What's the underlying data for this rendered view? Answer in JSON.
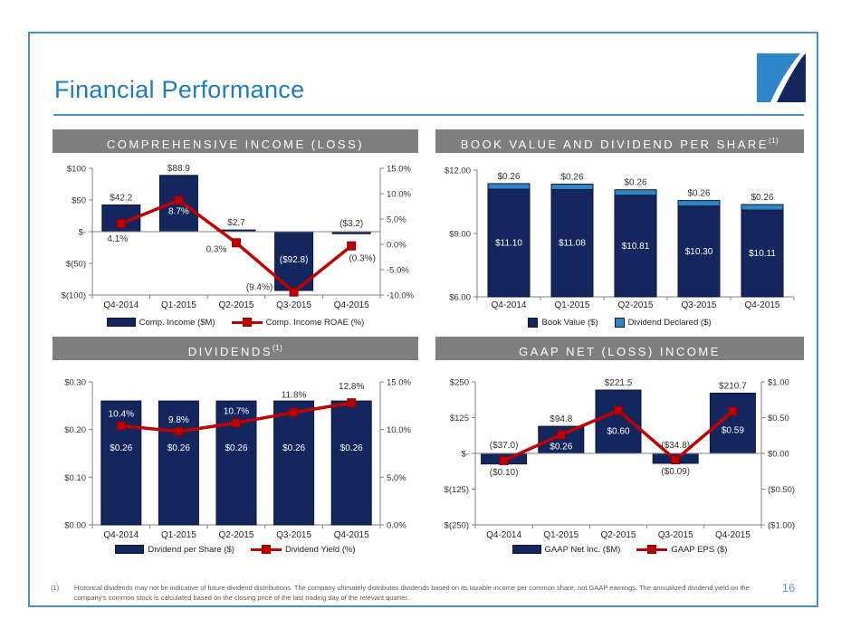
{
  "slide": {
    "title": "Financial Performance",
    "page_number": "16",
    "footnote": {
      "marker": "(1)",
      "text": "Historical dividends may not be indicative of future dividend distributions.  The company ultimately distributes dividends based on its taxable income per common share, not GAAP earnings. The annualized dividend yield on the company's common stock is calculated based on the closing price of the last trading day of the relevant quarter."
    },
    "colors": {
      "accent_blue": "#1E7BC0",
      "border_blue": "#4A90C8",
      "navy": "#13275E",
      "light_blue": "#2E86C8",
      "red": "#C00000",
      "red_dark": "#8B0000",
      "bar_outline": "#0A1634",
      "header_gray": "#7F7F7F",
      "axis_gray": "#808080",
      "text_dark": "#333333"
    }
  },
  "chart_data": [
    {
      "type": "bar",
      "title": "COMPREHENSIVE INCOME (LOSS)",
      "title_sup": "",
      "categories": [
        "Q4-2014",
        "Q1-2015",
        "Q2-2015",
        "Q3-2015",
        "Q4-2015"
      ],
      "left_axis": {
        "range": [
          -100,
          100
        ],
        "ticks": [
          {
            "v": 100,
            "t": "$100"
          },
          {
            "v": 50,
            "t": "$50"
          },
          {
            "v": 0,
            "t": "$-"
          },
          {
            "v": -50,
            "t": "$(50)"
          },
          {
            "v": -100,
            "t": "$(100)"
          }
        ]
      },
      "right_axis": {
        "range": [
          -10,
          15
        ],
        "ticks": [
          {
            "v": 15,
            "t": "15.0%"
          },
          {
            "v": 10,
            "t": "10.0%"
          },
          {
            "v": 5,
            "t": "5.0%"
          },
          {
            "v": 0,
            "t": "0.0%"
          },
          {
            "v": -5,
            "t": "-5.0%"
          },
          {
            "v": -10,
            "t": "-10.0%"
          }
        ]
      },
      "series": [
        {
          "name": "Comp. Income ($M)",
          "kind": "bar",
          "values": [
            42.2,
            88.9,
            2.7,
            -92.8,
            -3.2
          ],
          "labels": [
            "$42.2",
            "$88.9",
            "$2.7",
            "($92.8)",
            "($3.2)"
          ],
          "label_pos": [
            "above",
            "above",
            "above",
            "inside",
            "above-axis"
          ],
          "label_frac": 0.48
        },
        {
          "name": "Comp. Income ROAE (%)",
          "kind": "line",
          "values": [
            4.1,
            8.7,
            0.3,
            -9.4,
            -0.3
          ],
          "labels": [
            "4.1%",
            "8.7%",
            "0.3%",
            "(9.4%)",
            "(0.3%)"
          ],
          "label_dx": [
            -4,
            0,
            -22,
            -38,
            12
          ],
          "label_dy": [
            20,
            15,
            10,
            -2,
            17
          ],
          "label_white": [
            false,
            true,
            false,
            false,
            false
          ]
        }
      ]
    },
    {
      "type": "bar",
      "stacked": true,
      "title": "BOOK VALUE AND DIVIDEND PER SHARE",
      "title_sup": "(1)",
      "categories": [
        "Q4-2014",
        "Q1-2015",
        "Q2-2015",
        "Q3-2015",
        "Q4-2015"
      ],
      "left_axis": {
        "range": [
          6,
          12
        ],
        "ticks": [
          {
            "v": 12,
            "t": "$12.00"
          },
          {
            "v": 9,
            "t": "$9.00"
          },
          {
            "v": 6,
            "t": "$6.00"
          }
        ]
      },
      "series": [
        {
          "name": "Book Value ($)",
          "kind": "bar",
          "values": [
            11.1,
            11.08,
            10.81,
            10.3,
            10.11
          ],
          "labels": [
            "$11.10",
            "$11.08",
            "$10.81",
            "$10.30",
            "$10.11"
          ],
          "label_pos": [
            "inside",
            "inside",
            "inside",
            "inside",
            "inside"
          ],
          "label_frac": 0.5
        },
        {
          "name": "Dividend Declared ($)",
          "kind": "bar",
          "values": [
            0.26,
            0.26,
            0.26,
            0.26,
            0.26
          ],
          "labels": [
            "$0.26",
            "$0.26",
            "$0.26",
            "$0.26",
            "$0.26"
          ],
          "label_pos": [
            "above",
            "above",
            "above",
            "above",
            "above"
          ]
        }
      ]
    },
    {
      "type": "bar",
      "title": "DIVIDENDS",
      "title_sup": "(1)",
      "categories": [
        "Q4-2014",
        "Q1-2015",
        "Q2-2015",
        "Q3-2015",
        "Q4-2015"
      ],
      "left_axis": {
        "range": [
          0,
          0.3
        ],
        "ticks": [
          {
            "v": 0.3,
            "t": "$0.30"
          },
          {
            "v": 0.2,
            "t": "$0.20"
          },
          {
            "v": 0.1,
            "t": "$0.10"
          },
          {
            "v": 0,
            "t": "$0.00"
          }
        ]
      },
      "right_axis": {
        "range": [
          0,
          15
        ],
        "ticks": [
          {
            "v": 15,
            "t": "15.0%"
          },
          {
            "v": 10,
            "t": "10.0%"
          },
          {
            "v": 5,
            "t": "5.0%"
          },
          {
            "v": 0,
            "t": "0.0%"
          }
        ]
      },
      "series": [
        {
          "name": "Dividend per Share ($)",
          "kind": "bar",
          "values": [
            0.26,
            0.26,
            0.26,
            0.26,
            0.26
          ],
          "labels": [
            "$0.26",
            "$0.26",
            "$0.26",
            "$0.26",
            "$0.26"
          ],
          "label_pos": [
            "inside",
            "inside",
            "inside",
            "inside",
            "inside"
          ],
          "label_frac": 0.38
        },
        {
          "name": "Dividend Yield (%)",
          "kind": "line",
          "values": [
            10.4,
            9.8,
            10.7,
            11.8,
            12.8
          ],
          "labels": [
            "10.4%",
            "9.8%",
            "10.7%",
            "11.8%",
            "12.8%"
          ],
          "label_dx": [
            0,
            0,
            0,
            0,
            0
          ],
          "label_dy": [
            -10,
            -10,
            -10,
            -16,
            -15
          ],
          "label_white": [
            true,
            true,
            true,
            false,
            false
          ]
        }
      ]
    },
    {
      "type": "bar",
      "title": "GAAP NET (LOSS) INCOME",
      "title_sup": "",
      "categories": [
        "Q4-2014",
        "Q1-2015",
        "Q2-2015",
        "Q3-2015",
        "Q4-2015"
      ],
      "left_axis": {
        "range": [
          -250,
          250
        ],
        "ticks": [
          {
            "v": 250,
            "t": "$250"
          },
          {
            "v": 125,
            "t": "$125"
          },
          {
            "v": 0,
            "t": "$-"
          },
          {
            "v": -125,
            "t": "$(125)"
          },
          {
            "v": -250,
            "t": "$(250)"
          }
        ]
      },
      "right_axis": {
        "range": [
          -1,
          1
        ],
        "ticks": [
          {
            "v": 1,
            "t": "$1.00"
          },
          {
            "v": 0.5,
            "t": "$0.50"
          },
          {
            "v": 0,
            "t": "$0.00"
          },
          {
            "v": -0.5,
            "t": "($0.50)"
          },
          {
            "v": -1,
            "t": "($1.00)"
          }
        ]
      },
      "series": [
        {
          "name": "GAAP Net Inc. ($M)",
          "kind": "bar",
          "values": [
            -37.0,
            94.8,
            221.5,
            -34.8,
            210.7
          ],
          "labels": [
            "($37.0)",
            "$94.8",
            "$221.5",
            "($34.8)",
            "$210.7"
          ],
          "label_pos": [
            "above-axis",
            "above",
            "above",
            "above-axis",
            "above"
          ]
        },
        {
          "name": "GAAP EPS ($)",
          "kind": "line",
          "values": [
            -0.1,
            0.26,
            0.6,
            -0.09,
            0.59
          ],
          "labels": [
            "($0.10)",
            "$0.26",
            "$0.60",
            "($0.09)",
            "$0.59"
          ],
          "label_dx": [
            0,
            0,
            0,
            0,
            0
          ],
          "label_dy": [
            16,
            16,
            26,
            16,
            24
          ],
          "label_white": [
            false,
            true,
            true,
            false,
            true
          ]
        }
      ]
    }
  ]
}
